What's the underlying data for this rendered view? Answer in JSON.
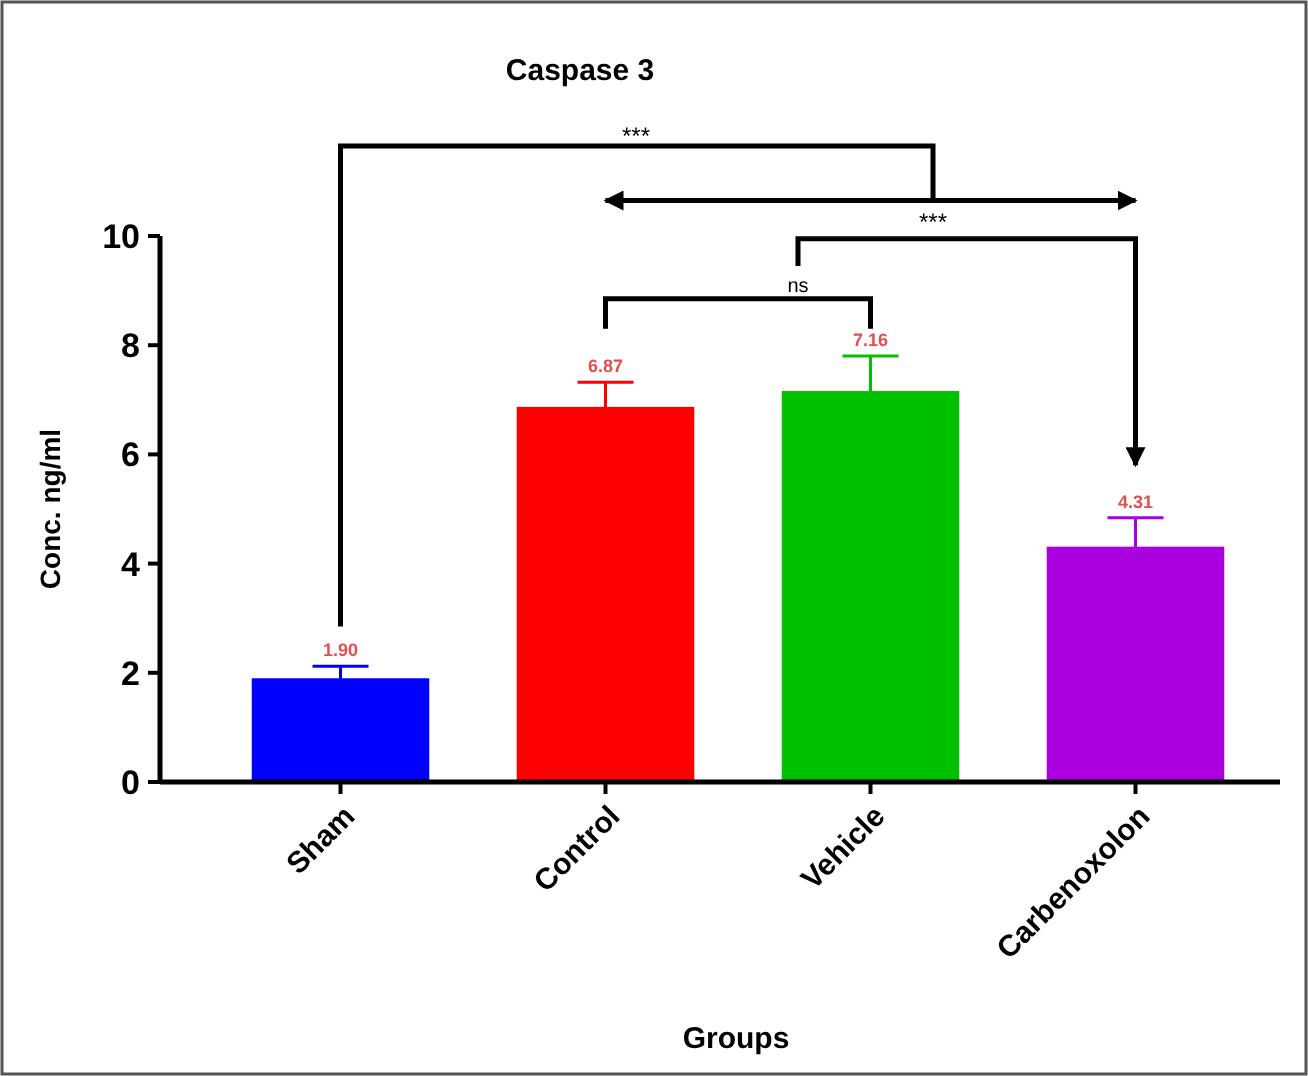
{
  "chart_data": {
    "type": "bar",
    "title": "Caspase 3",
    "xlabel": "Groups",
    "ylabel": "Conc. ng/ml",
    "categories": [
      "Sham",
      "Control",
      "Vehicle",
      "Carbenoxolon"
    ],
    "values": [
      1.9,
      6.87,
      7.16,
      4.31
    ],
    "colors": [
      "#0000ff",
      "#ff0000",
      "#00c000",
      "#aa00e0"
    ],
    "errors": [
      0.22,
      0.45,
      0.64,
      0.53
    ],
    "value_labels": [
      "1.90",
      "6.87",
      "7.16",
      "4.31"
    ],
    "ylim": [
      0,
      10
    ],
    "yticks": [
      0,
      2,
      4,
      6,
      8,
      10
    ],
    "annotations": [
      "***",
      "***",
      "ns"
    ]
  }
}
